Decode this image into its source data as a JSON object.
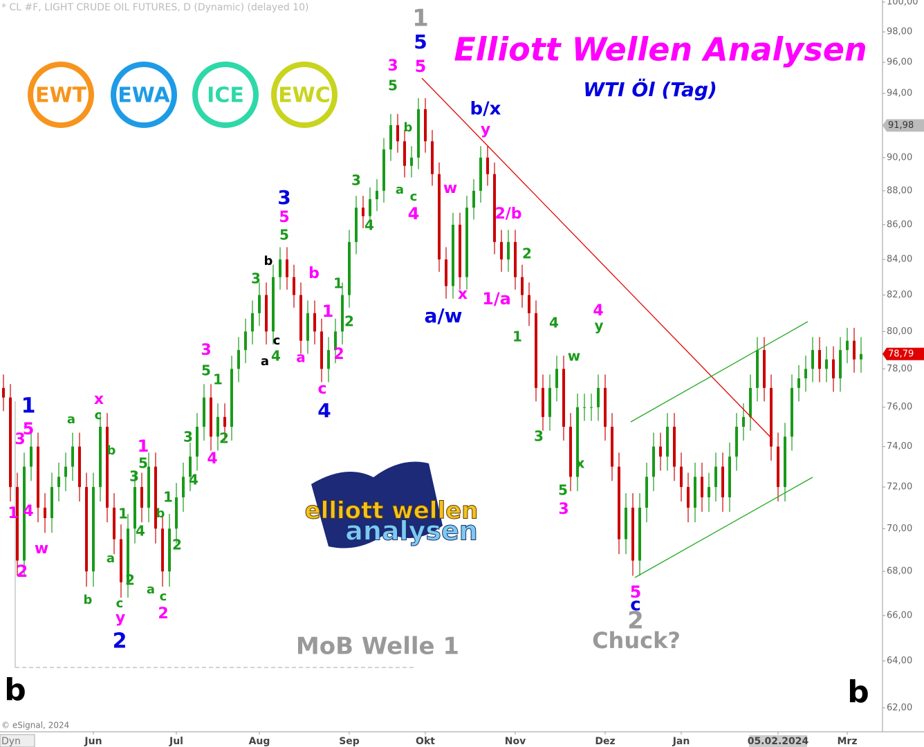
{
  "chart_data": {
    "type": "candlestick",
    "title": "Elliott Wellen Analysen",
    "subtitle": "WTI Öl (Tag)",
    "source_header": "* CL #F, LIGHT CRUDE OIL FUTURES, D (Dynamic) (delayed 10)",
    "copyright": "© eSignal, 2024",
    "corner_label": "Dyn",
    "log_scale": true,
    "up_color": "#1a9a1a",
    "down_color": "#cc0000",
    "ylim": [
      61,
      100.14
    ],
    "yticks": [
      {
        "value": 62,
        "label": "62,00"
      },
      {
        "value": 64,
        "label": "64,00"
      },
      {
        "value": 66,
        "label": "66,00"
      },
      {
        "value": 68,
        "label": "68,00"
      },
      {
        "value": 70,
        "label": "70,00"
      },
      {
        "value": 72,
        "label": "72,00"
      },
      {
        "value": 74,
        "label": "74,00"
      },
      {
        "value": 76,
        "label": "76,00"
      },
      {
        "value": 78,
        "label": "78,00"
      },
      {
        "value": 80,
        "label": "80,00"
      },
      {
        "value": 82,
        "label": "82,00"
      },
      {
        "value": 84,
        "label": "84,00"
      },
      {
        "value": 86,
        "label": "86,00"
      },
      {
        "value": 88,
        "label": "88,00"
      },
      {
        "value": 90,
        "label": "90,00"
      },
      {
        "value": 92,
        "label": "92,00"
      },
      {
        "value": 94,
        "label": "94,00"
      },
      {
        "value": 96,
        "label": "96,00"
      },
      {
        "value": 98,
        "label": "98,00"
      },
      {
        "value": 100,
        "label": "100,00"
      }
    ],
    "price_tags": [
      {
        "value": 91.98,
        "label": "91,98",
        "color": "#bbbbbb"
      },
      {
        "value": 78.79,
        "label": "78,79",
        "color": "#e00000"
      }
    ],
    "categories": [
      null,
      null,
      null,
      null,
      null,
      null,
      null,
      null,
      null,
      null,
      null,
      null,
      null,
      "Jun",
      null,
      null,
      null,
      null,
      null,
      null,
      null,
      null,
      null,
      null,
      null,
      "Jul",
      null,
      null,
      null,
      null,
      null,
      null,
      null,
      null,
      null,
      null,
      null,
      "Aug",
      null,
      null,
      null,
      null,
      null,
      null,
      null,
      null,
      null,
      null,
      null,
      null,
      "Sep",
      null,
      null,
      null,
      null,
      null,
      null,
      null,
      null,
      null,
      null,
      "Okt",
      null,
      null,
      null,
      null,
      null,
      null,
      null,
      null,
      null,
      null,
      null,
      null,
      "Nov",
      null,
      null,
      null,
      null,
      null,
      null,
      null,
      null,
      null,
      null,
      null,
      null,
      "Dez",
      null,
      null,
      null,
      null,
      null,
      null,
      null,
      null,
      null,
      null,
      "Jan",
      null,
      null,
      null,
      null,
      null,
      null,
      null,
      null,
      null,
      null,
      null,
      null,
      null,
      "05.02.2024",
      null,
      null,
      null,
      null,
      null,
      null,
      null,
      null,
      null,
      "Mrz",
      null,
      null
    ],
    "candles": [
      [
        77,
        77.7,
        75.8,
        76.5
      ],
      [
        76.5,
        77.2,
        71.3,
        72
      ],
      [
        72,
        72.7,
        67.8,
        68.5
      ],
      [
        68.5,
        73.7,
        67.8,
        73
      ],
      [
        73,
        74.7,
        72.3,
        74
      ],
      [
        74,
        74.7,
        70.3,
        71
      ],
      [
        71,
        71.7,
        69.8,
        70.5
      ],
      [
        70.5,
        72.7,
        69.8,
        72
      ],
      [
        72,
        73.2,
        71.3,
        72.5
      ],
      [
        72.5,
        73.7,
        71.8,
        73
      ],
      [
        73,
        74.7,
        72.3,
        74
      ],
      [
        74,
        74.7,
        71.3,
        72
      ],
      [
        72,
        72.7,
        67.3,
        68
      ],
      [
        68,
        72.7,
        67.3,
        72
      ],
      [
        72,
        75.7,
        71.3,
        75
      ],
      [
        75,
        75.7,
        70.3,
        71
      ],
      [
        71,
        71.7,
        68.8,
        69.5
      ],
      [
        69.5,
        70.2,
        66.8,
        67.5
      ],
      [
        67.5,
        70.7,
        66.8,
        70
      ],
      [
        70,
        72.7,
        69.3,
        72
      ],
      [
        72,
        72.7,
        70.3,
        71
      ],
      [
        71,
        73.7,
        70.3,
        73
      ],
      [
        73,
        73.7,
        69.3,
        70
      ],
      [
        70,
        70.7,
        67.3,
        68
      ],
      [
        68,
        70.7,
        67.3,
        70
      ],
      [
        70,
        72.2,
        69.3,
        71.5
      ],
      [
        71.5,
        73.2,
        70.8,
        72.5
      ],
      [
        72.5,
        74.2,
        71.8,
        73.5
      ],
      [
        73.5,
        75.7,
        72.8,
        75
      ],
      [
        75,
        77.2,
        74.3,
        76.5
      ],
      [
        76.5,
        77.2,
        73.8,
        74.5
      ],
      [
        74.5,
        76.2,
        73.8,
        75.5
      ],
      [
        75.5,
        76.2,
        74.3,
        75
      ],
      [
        75,
        78.7,
        74.3,
        78
      ],
      [
        78,
        79.7,
        77.3,
        79
      ],
      [
        79,
        80.7,
        78.3,
        80
      ],
      [
        80,
        81.7,
        79.3,
        81
      ],
      [
        81,
        82.7,
        80.3,
        82
      ],
      [
        82,
        82.7,
        79.3,
        80
      ],
      [
        80,
        83.7,
        79.3,
        83
      ],
      [
        83,
        84.7,
        82.3,
        84
      ],
      [
        84,
        84.7,
        82.3,
        83
      ],
      [
        83,
        83.7,
        81.3,
        82
      ],
      [
        82,
        82.7,
        78.8,
        79.5
      ],
      [
        79.5,
        81.7,
        78.8,
        81
      ],
      [
        81,
        81.7,
        79.3,
        80
      ],
      [
        80,
        80.7,
        77.3,
        78
      ],
      [
        78,
        79.7,
        77.3,
        79
      ],
      [
        79,
        80.7,
        78.3,
        80
      ],
      [
        80,
        82.7,
        79.3,
        82
      ],
      [
        82,
        85.7,
        81.3,
        85
      ],
      [
        85,
        87.7,
        84.3,
        87
      ],
      [
        87,
        87.7,
        85.8,
        86.5
      ],
      [
        86.5,
        88.2,
        85.8,
        87.5
      ],
      [
        87.5,
        88.7,
        86.8,
        88
      ],
      [
        88,
        91.2,
        87.3,
        90.5
      ],
      [
        90.5,
        92.7,
        89.8,
        92
      ],
      [
        92,
        92.7,
        90.3,
        91
      ],
      [
        91,
        91.7,
        88.8,
        89.5
      ],
      [
        89.5,
        90.7,
        88.8,
        90
      ],
      [
        90,
        93.7,
        89.3,
        93
      ],
      [
        93,
        93.7,
        90.3,
        91
      ],
      [
        91,
        91.7,
        88.3,
        89
      ],
      [
        89,
        89.7,
        83.3,
        84
      ],
      [
        84,
        84.7,
        81.8,
        82.5
      ],
      [
        82.5,
        86.7,
        81.8,
        86
      ],
      [
        86,
        86.7,
        82.3,
        83
      ],
      [
        83,
        87.7,
        82.3,
        87
      ],
      [
        87,
        88.7,
        86.3,
        88
      ],
      [
        88,
        90.7,
        87.3,
        90
      ],
      [
        90,
        90.7,
        88.3,
        89
      ],
      [
        89,
        89.7,
        84.3,
        85
      ],
      [
        85,
        85.7,
        83.3,
        84
      ],
      [
        84,
        85.7,
        83.3,
        85
      ],
      [
        85,
        85.7,
        82.3,
        83
      ],
      [
        83,
        83.7,
        81.3,
        82
      ],
      [
        82,
        82.7,
        80.3,
        81
      ],
      [
        81,
        81.7,
        76.3,
        77
      ],
      [
        77,
        77.7,
        74.8,
        75.5
      ],
      [
        75.5,
        77.7,
        74.8,
        77
      ],
      [
        77,
        78.7,
        76.3,
        78
      ],
      [
        78,
        78.7,
        74.3,
        75
      ],
      [
        75,
        75.7,
        71.8,
        72.5
      ],
      [
        72.5,
        76.7,
        71.8,
        76
      ],
      [
        76,
        76.7,
        75.3,
        76
      ],
      [
        76,
        76.7,
        75.3,
        76
      ],
      [
        76,
        77.7,
        75.3,
        77
      ],
      [
        77,
        77.7,
        74.3,
        75
      ],
      [
        75,
        75.7,
        72.3,
        73
      ],
      [
        73,
        73.7,
        68.8,
        69.5
      ],
      [
        69.5,
        71.7,
        68.8,
        71
      ],
      [
        71,
        71.7,
        67.8,
        68.5
      ],
      [
        68.5,
        71.7,
        67.8,
        71
      ],
      [
        71,
        73.2,
        70.3,
        72.5
      ],
      [
        72.5,
        74.7,
        71.8,
        74
      ],
      [
        74,
        74.7,
        72.8,
        73.5
      ],
      [
        73.5,
        75.7,
        72.8,
        75
      ],
      [
        75,
        75.7,
        72.3,
        73
      ],
      [
        73,
        73.7,
        71.3,
        72
      ],
      [
        72,
        72.7,
        70.3,
        71
      ],
      [
        71,
        73.2,
        70.3,
        72.5
      ],
      [
        72.5,
        73.2,
        70.8,
        71.5
      ],
      [
        71.5,
        72.7,
        70.8,
        72
      ],
      [
        72,
        73.7,
        71.3,
        73
      ],
      [
        73,
        73.7,
        70.8,
        71.5
      ],
      [
        71.5,
        74.2,
        70.8,
        73.5
      ],
      [
        73.5,
        75.7,
        72.8,
        75
      ],
      [
        75,
        76.2,
        74.3,
        75.5
      ],
      [
        75.5,
        77.7,
        74.8,
        77
      ],
      [
        77,
        79.7,
        76.3,
        79
      ],
      [
        79,
        79.7,
        76.3,
        77
      ],
      [
        77,
        77.7,
        73.3,
        74
      ],
      [
        74,
        74.7,
        71.3,
        72
      ],
      [
        72,
        75.2,
        71.3,
        74.5
      ],
      [
        74.5,
        77.7,
        73.8,
        77
      ],
      [
        77,
        78.2,
        76.3,
        77.5
      ],
      [
        77.5,
        78.7,
        76.8,
        78
      ],
      [
        78,
        79.7,
        77.3,
        79
      ],
      [
        79,
        79.7,
        77.3,
        78
      ],
      [
        78,
        79.2,
        77.3,
        78.5
      ],
      [
        78.5,
        79.2,
        76.8,
        77.5
      ],
      [
        77.5,
        79.7,
        76.8,
        79
      ],
      [
        79,
        80.2,
        78.3,
        79.5
      ],
      [
        79.5,
        80.2,
        77.8,
        78.5
      ],
      [
        78.5,
        79.7,
        77.8,
        78.79
      ]
    ],
    "logos": [
      {
        "text": "EWT",
        "color": "#f7941d"
      },
      {
        "text": "EWA",
        "color": "#1e9be6"
      },
      {
        "text": "ICE",
        "color": "#2ed8a8"
      },
      {
        "text": "EWC",
        "color": "#c8d41e"
      }
    ],
    "logo_top": "elliott wellen",
    "logo_bottom": "analysen",
    "annotations": [
      {
        "text": "1",
        "color": "#999999"
      },
      {
        "text": "5",
        "color": "#0000e0"
      },
      {
        "text": "5",
        "color": "#ff00ff"
      },
      {
        "text": "3",
        "color": "#ff00ff"
      },
      {
        "text": "5",
        "color": "#1a9a1a"
      },
      {
        "text": "b",
        "color": "#1a9a1a"
      },
      {
        "text": "a",
        "color": "#1a9a1a"
      },
      {
        "text": "c",
        "color": "#1a9a1a"
      },
      {
        "text": "4",
        "color": "#ff00ff"
      },
      {
        "text": "3",
        "color": "#1a9a1a"
      },
      {
        "text": "4",
        "color": "#1a9a1a"
      },
      {
        "text": "b/x",
        "color": "#0000e0"
      },
      {
        "text": "y",
        "color": "#ff00ff"
      },
      {
        "text": "w",
        "color": "#ff00ff"
      },
      {
        "text": "2/b",
        "color": "#ff00ff"
      },
      {
        "text": "2",
        "color": "#1a9a1a"
      },
      {
        "text": "x",
        "color": "#ff00ff"
      },
      {
        "text": "1/a",
        "color": "#ff00ff"
      },
      {
        "text": "a/w",
        "color": "#0000e0"
      },
      {
        "text": "4",
        "color": "#1a9a1a"
      },
      {
        "text": "1",
        "color": "#1a9a1a"
      },
      {
        "text": "4",
        "color": "#ff00ff"
      },
      {
        "text": "y",
        "color": "#1a9a1a"
      },
      {
        "text": "w",
        "color": "#1a9a1a"
      },
      {
        "text": "3",
        "color": "#1a9a1a"
      },
      {
        "text": "x",
        "color": "#1a9a1a"
      },
      {
        "text": "5",
        "color": "#1a9a1a"
      },
      {
        "text": "3",
        "color": "#ff00ff"
      },
      {
        "text": "5",
        "color": "#ff00ff"
      },
      {
        "text": "c",
        "color": "#0000e0"
      },
      {
        "text": "2",
        "color": "#999999"
      },
      {
        "text": "Chuck?",
        "color": "#999999"
      },
      {
        "text": "MoB Welle 1",
        "color": "#999999"
      },
      {
        "text": "3",
        "color": "#0000e0"
      },
      {
        "text": "5",
        "color": "#ff00ff"
      },
      {
        "text": "5",
        "color": "#1a9a1a"
      },
      {
        "text": "b",
        "color": "#000000"
      },
      {
        "text": "3",
        "color": "#1a9a1a"
      },
      {
        "text": "b",
        "color": "#ff00ff"
      },
      {
        "text": "1",
        "color": "#1a9a1a"
      },
      {
        "text": "1",
        "color": "#ff00ff"
      },
      {
        "text": "2",
        "color": "#1a9a1a"
      },
      {
        "text": "c",
        "color": "#000000"
      },
      {
        "text": "a",
        "color": "#000000"
      },
      {
        "text": "4",
        "color": "#1a9a1a"
      },
      {
        "text": "a",
        "color": "#ff00ff"
      },
      {
        "text": "2",
        "color": "#ff00ff"
      },
      {
        "text": "c",
        "color": "#ff00ff"
      },
      {
        "text": "4",
        "color": "#0000e0"
      },
      {
        "text": "3",
        "color": "#ff00ff"
      },
      {
        "text": "5",
        "color": "#1a9a1a"
      },
      {
        "text": "1",
        "color": "#1a9a1a"
      },
      {
        "text": "2",
        "color": "#1a9a1a"
      },
      {
        "text": "4",
        "color": "#ff00ff"
      },
      {
        "text": "3",
        "color": "#1a9a1a"
      },
      {
        "text": "4",
        "color": "#1a9a1a"
      },
      {
        "text": "1",
        "color": "#1a9a1a"
      },
      {
        "text": "b",
        "color": "#1a9a1a"
      },
      {
        "text": "2",
        "color": "#1a9a1a"
      },
      {
        "text": "a",
        "color": "#1a9a1a"
      },
      {
        "text": "c",
        "color": "#1a9a1a"
      },
      {
        "text": "2",
        "color": "#ff00ff"
      },
      {
        "text": "1",
        "color": "#ff00ff"
      },
      {
        "text": "5",
        "color": "#1a9a1a"
      },
      {
        "text": "3",
        "color": "#1a9a1a"
      },
      {
        "text": "1",
        "color": "#1a9a1a"
      },
      {
        "text": "4",
        "color": "#1a9a1a"
      },
      {
        "text": "a",
        "color": "#1a9a1a"
      },
      {
        "text": "2",
        "color": "#1a9a1a"
      },
      {
        "text": "c",
        "color": "#1a9a1a"
      },
      {
        "text": "y",
        "color": "#ff00ff"
      },
      {
        "text": "2",
        "color": "#0000e0"
      },
      {
        "text": "x",
        "color": "#ff00ff"
      },
      {
        "text": "c",
        "color": "#1a9a1a"
      },
      {
        "text": "b",
        "color": "#1a9a1a"
      },
      {
        "text": "a",
        "color": "#1a9a1a"
      },
      {
        "text": "b",
        "color": "#1a9a1a"
      },
      {
        "text": "1",
        "color": "#0000e0"
      },
      {
        "text": "5",
        "color": "#ff00ff"
      },
      {
        "text": "3",
        "color": "#ff00ff"
      },
      {
        "text": "1",
        "color": "#ff00ff"
      },
      {
        "text": "4",
        "color": "#ff00ff"
      },
      {
        "text": "w",
        "color": "#ff00ff"
      },
      {
        "text": "2",
        "color": "#ff00ff"
      },
      {
        "text": "b",
        "color": "#000000"
      },
      {
        "text": "b",
        "color": "#000000"
      }
    ]
  }
}
